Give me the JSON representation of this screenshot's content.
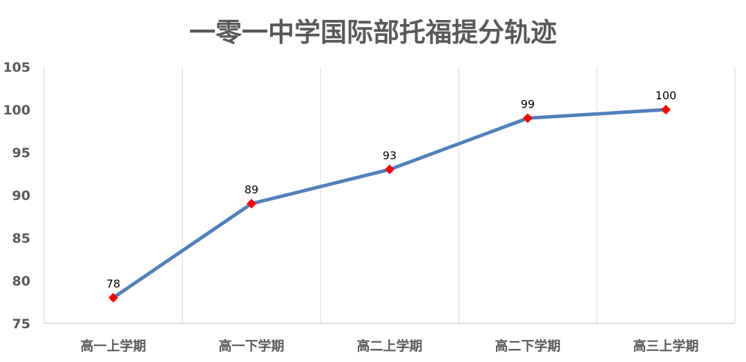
{
  "chart_data": {
    "type": "line",
    "title": "一零一中学国际部托福提分轨迹",
    "xlabel": "",
    "ylabel": "",
    "categories": [
      "高一上学期",
      "高一下学期",
      "高二上学期",
      "高二下学期",
      "高三上学期"
    ],
    "series": [
      {
        "values": [
          78,
          89,
          93,
          99,
          100
        ]
      }
    ],
    "data_labels": [
      "78",
      "89",
      "93",
      "99",
      "100"
    ],
    "y_ticks": [
      "75",
      "80",
      "85",
      "90",
      "95",
      "100",
      "105"
    ],
    "ylim": [
      75,
      105
    ],
    "grid": "vertical",
    "legend": "none",
    "colors": {
      "line": "#4f81bd",
      "marker": "#ff0000",
      "title": "#595959",
      "tick": "#595959",
      "grid": "#d9d9d9"
    }
  }
}
